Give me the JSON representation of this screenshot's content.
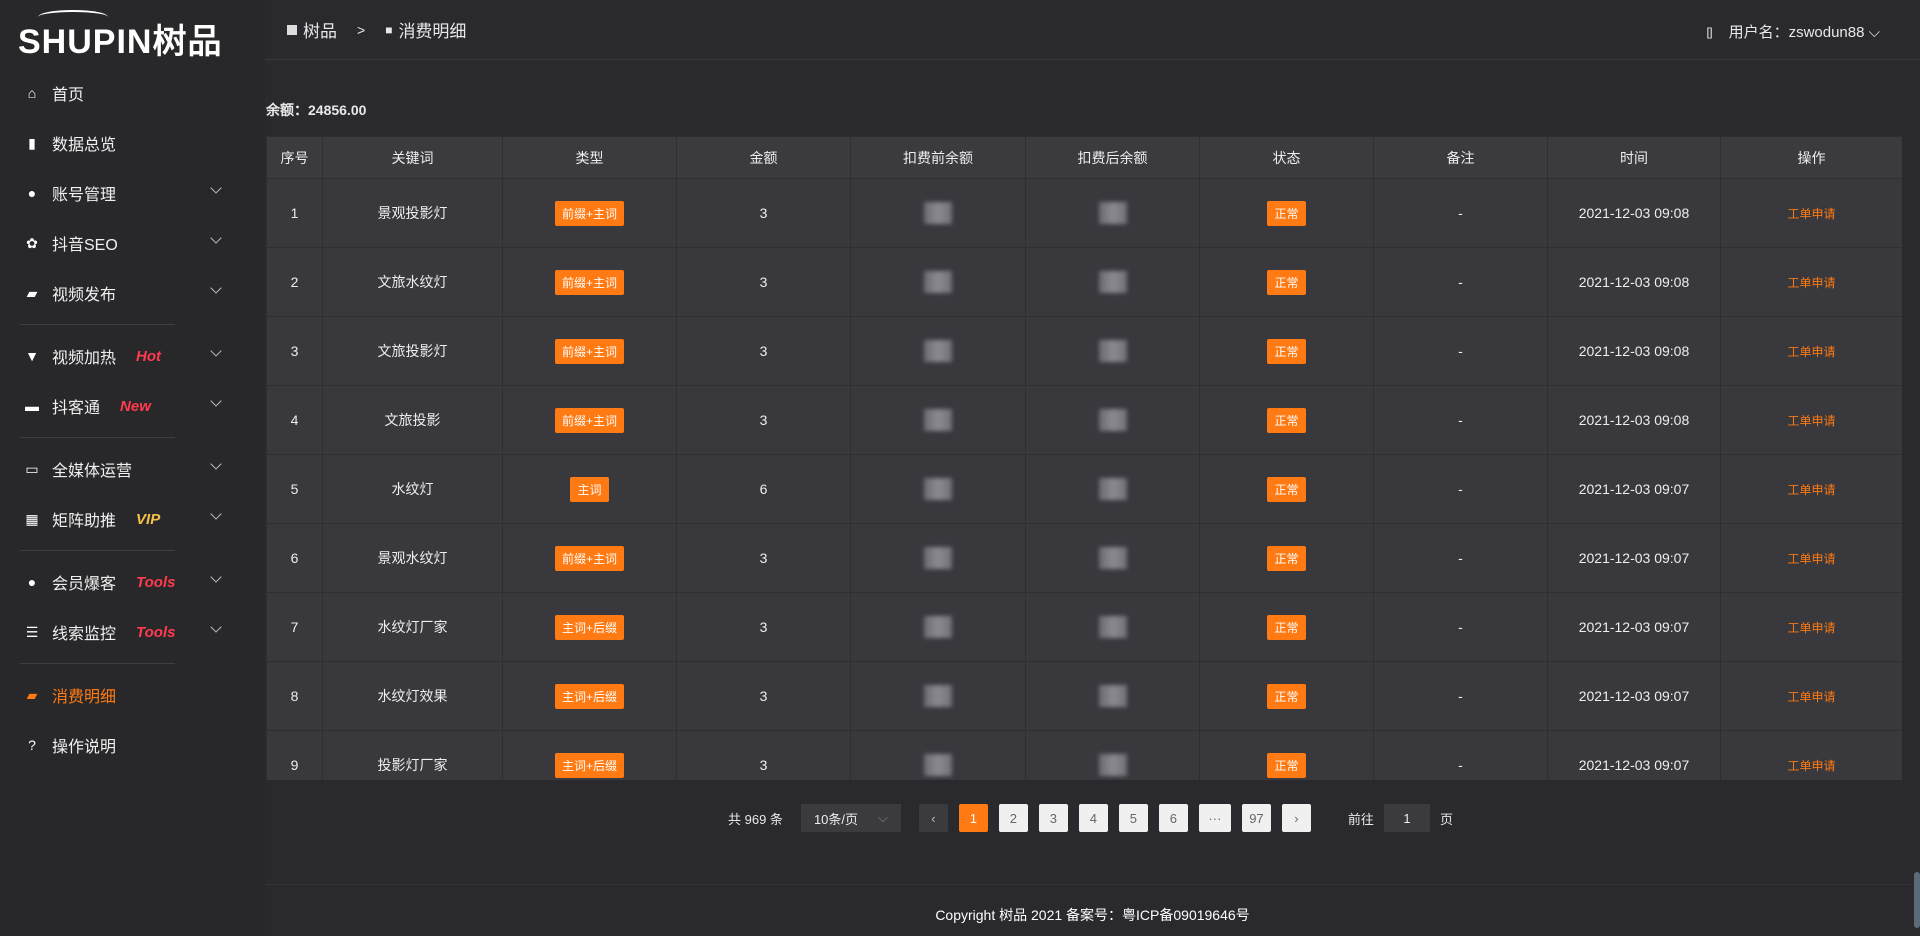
{
  "brand": {
    "logo_text": "SHUPIN树品"
  },
  "sidebar": {
    "items": [
      {
        "label": "首页",
        "icon": "home-icon"
      },
      {
        "label": "数据总览",
        "icon": "bar-chart-icon"
      },
      {
        "label": "账号管理",
        "icon": "user-icon",
        "expand": true
      },
      {
        "label": "抖音SEO",
        "icon": "gear-icon",
        "expand": true
      },
      {
        "label": "视频发布",
        "icon": "video-icon",
        "expand": true
      },
      {
        "label": "视频加热",
        "icon": "flag-icon",
        "badge": "Hot",
        "badge_color": "#ff3b4e",
        "expand": true
      },
      {
        "label": "抖客通",
        "icon": "chat-icon",
        "badge": "New",
        "badge_color": "#ff3b4e",
        "expand": true
      },
      {
        "label": "全媒体运营",
        "icon": "monitor-icon",
        "expand": true
      },
      {
        "label": "矩阵助推",
        "icon": "grid-icon",
        "badge": "VIP",
        "badge_color": "#f5c04a",
        "expand": true
      },
      {
        "label": "会员爆客",
        "icon": "user-icon",
        "badge": "Tools",
        "badge_color": "#ff3b4e",
        "expand": true
      },
      {
        "label": "线索监控",
        "icon": "sliders-icon",
        "badge": "Tools",
        "badge_color": "#ff3b4e",
        "expand": true
      },
      {
        "label": "消费明细",
        "icon": "wallet-icon",
        "active": true
      },
      {
        "label": "操作说明",
        "icon": "help-icon"
      }
    ]
  },
  "header": {
    "breadcrumb": [
      "树品",
      ">",
      "消费明细"
    ],
    "user_label": "用户名：zswodun88"
  },
  "balance": {
    "label": "余额：24856.00"
  },
  "table": {
    "columns": [
      "序号",
      "关键词",
      "类型",
      "金额",
      "扣费前余额",
      "扣费后余额",
      "状态",
      "备注",
      "时间",
      "操作"
    ],
    "rows": [
      {
        "no": "1",
        "keyword": "景观投影灯",
        "type": "前缀+主词",
        "amount": "3",
        "status": "正常",
        "note": "-",
        "time": "2021-12-03 09:08",
        "op": "工单申请"
      },
      {
        "no": "2",
        "keyword": "文旅水纹灯",
        "type": "前缀+主词",
        "amount": "3",
        "status": "正常",
        "note": "-",
        "time": "2021-12-03 09:08",
        "op": "工单申请"
      },
      {
        "no": "3",
        "keyword": "文旅投影灯",
        "type": "前缀+主词",
        "amount": "3",
        "status": "正常",
        "note": "-",
        "time": "2021-12-03 09:08",
        "op": "工单申请"
      },
      {
        "no": "4",
        "keyword": "文旅投影",
        "type": "前缀+主词",
        "amount": "3",
        "status": "正常",
        "note": "-",
        "time": "2021-12-03 09:08",
        "op": "工单申请"
      },
      {
        "no": "5",
        "keyword": "水纹灯",
        "type": "主词",
        "amount": "6",
        "status": "正常",
        "note": "-",
        "time": "2021-12-03 09:07",
        "op": "工单申请"
      },
      {
        "no": "6",
        "keyword": "景观水纹灯",
        "type": "前缀+主词",
        "amount": "3",
        "status": "正常",
        "note": "-",
        "time": "2021-12-03 09:07",
        "op": "工单申请"
      },
      {
        "no": "7",
        "keyword": "水纹灯厂家",
        "type": "主词+后缀",
        "amount": "3",
        "status": "正常",
        "note": "-",
        "time": "2021-12-03 09:07",
        "op": "工单申请"
      },
      {
        "no": "8",
        "keyword": "水纹灯效果",
        "type": "主词+后缀",
        "amount": "3",
        "status": "正常",
        "note": "-",
        "time": "2021-12-03 09:07",
        "op": "工单申请"
      },
      {
        "no": "9",
        "keyword": "投影灯厂家",
        "type": "主词+后缀",
        "amount": "3",
        "status": "正常",
        "note": "-",
        "time": "2021-12-03 09:07",
        "op": "工单申请"
      }
    ]
  },
  "pagination": {
    "total": "共 969 条",
    "page_size": "10条/页",
    "pages": [
      "1",
      "2",
      "3",
      "4",
      "5",
      "6",
      "···",
      "97"
    ],
    "current": "1",
    "goto_label": "前往",
    "goto_value": "1",
    "page_suffix": "页"
  },
  "footer": {
    "text": "Copyright 树品 2021 备案号：粤ICP备09019646号"
  },
  "colors": {
    "accent": "#ff7a12",
    "background": "#2a2a2e"
  }
}
